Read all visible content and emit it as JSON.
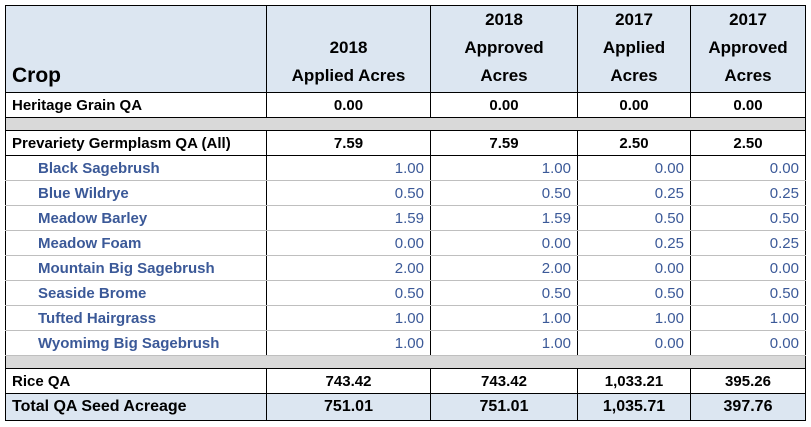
{
  "table": {
    "corner": "Crop",
    "columns": [
      [
        "2018",
        "Applied Acres"
      ],
      [
        "2018",
        "Approved",
        "Acres"
      ],
      [
        "2017",
        "Applied",
        "Acres"
      ],
      [
        "2017",
        "Approved",
        "Acres"
      ]
    ],
    "groups": [
      {
        "label": "Heritage Grain QA",
        "values": [
          "0.00",
          "0.00",
          "0.00",
          "0.00"
        ],
        "items": []
      },
      {
        "label": "Prevariety Germplasm QA (All)",
        "values": [
          "7.59",
          "7.59",
          "2.50",
          "2.50"
        ],
        "items": [
          {
            "label": "Black Sagebrush",
            "values": [
              "1.00",
              "1.00",
              "0.00",
              "0.00"
            ]
          },
          {
            "label": "Blue Wildrye",
            "values": [
              "0.50",
              "0.50",
              "0.25",
              "0.25"
            ]
          },
          {
            "label": "Meadow Barley",
            "values": [
              "1.59",
              "1.59",
              "0.50",
              "0.50"
            ]
          },
          {
            "label": "Meadow Foam",
            "values": [
              "0.00",
              "0.00",
              "0.25",
              "0.25"
            ]
          },
          {
            "label": "Mountain Big Sagebrush",
            "values": [
              "2.00",
              "2.00",
              "0.00",
              "0.00"
            ]
          },
          {
            "label": "Seaside Brome",
            "values": [
              "0.50",
              "0.50",
              "0.50",
              "0.50"
            ]
          },
          {
            "label": "Tufted Hairgrass",
            "values": [
              "1.00",
              "1.00",
              "1.00",
              "1.00"
            ]
          },
          {
            "label": "Wyomimg Big Sagebrush",
            "values": [
              "1.00",
              "1.00",
              "0.00",
              "0.00"
            ]
          }
        ]
      },
      {
        "label": "Rice QA",
        "values": [
          "743.42",
          "743.42",
          "1,033.21",
          "395.26"
        ],
        "items": []
      }
    ],
    "total": {
      "label": "Total QA Seed Acreage",
      "values": [
        "751.01",
        "751.01",
        "1,035.71",
        "397.76"
      ]
    }
  }
}
